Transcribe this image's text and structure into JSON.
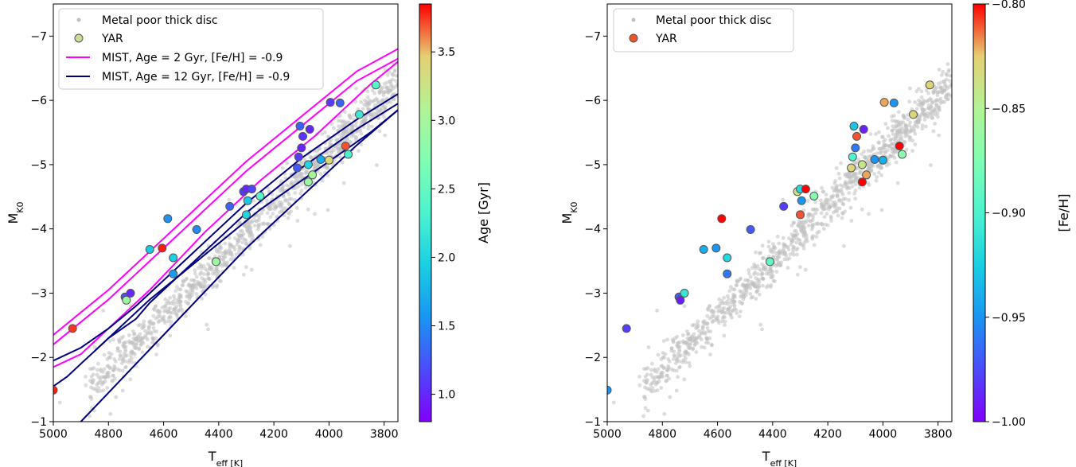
{
  "chart_data": [
    {
      "type": "scatter",
      "xlabel": "T_eff [K]",
      "ylabel": "M_K0",
      "xlim": [
        5000,
        3750
      ],
      "ylim": [
        -1,
        -7.5
      ],
      "xticks": [
        5000,
        4800,
        4600,
        4400,
        4200,
        4000,
        3800
      ],
      "yticks": [
        -1,
        -2,
        -3,
        -4,
        -5,
        -6,
        -7
      ],
      "colorbar": {
        "label": "Age [Gyr]",
        "range": [
          0.8,
          3.85
        ],
        "ticks": [
          1.0,
          1.5,
          2.0,
          2.5,
          3.0,
          3.5
        ],
        "colormap": "rainbow"
      },
      "legend": {
        "placement": "top-left",
        "entries": [
          "Metal poor thick disc",
          "YAR",
          "MIST, Age = 2 Gyr, [Fe/H] = -0.9",
          "MIST, Age = 12 Gyr, [Fe/H] = -0.9"
        ]
      },
      "background_cloud": {
        "name": "Metal poor thick disc",
        "color": "#c0c0c0",
        "trend": "dense band from (4850 K, -1.6) to (3750 K, -6.3)"
      },
      "yar_points": [
        {
          "teff": 5000,
          "mk": -1.49,
          "age": 3.8
        },
        {
          "teff": 4930,
          "mk": -2.45,
          "age": 3.75
        },
        {
          "teff": 4740,
          "mk": -2.94,
          "age": 1.2
        },
        {
          "teff": 4735,
          "mk": -2.89,
          "age": 2.9
        },
        {
          "teff": 4720,
          "mk": -3.0,
          "age": 1.0
        },
        {
          "teff": 4650,
          "mk": -3.68,
          "age": 1.9
        },
        {
          "teff": 4605,
          "mk": -3.7,
          "age": 3.8
        },
        {
          "teff": 4585,
          "mk": -4.16,
          "age": 1.55
        },
        {
          "teff": 4565,
          "mk": -3.55,
          "age": 1.95
        },
        {
          "teff": 4565,
          "mk": -3.3,
          "age": 1.6
        },
        {
          "teff": 4480,
          "mk": -3.99,
          "age": 1.5
        },
        {
          "teff": 4410,
          "mk": -3.49,
          "age": 2.9
        },
        {
          "teff": 4360,
          "mk": -4.35,
          "age": 1.3
        },
        {
          "teff": 4310,
          "mk": -4.58,
          "age": 1.1
        },
        {
          "teff": 4300,
          "mk": -4.62,
          "age": 1.0
        },
        {
          "teff": 4300,
          "mk": -4.22,
          "age": 2.0
        },
        {
          "teff": 4295,
          "mk": -4.44,
          "age": 1.9
        },
        {
          "teff": 4280,
          "mk": -4.62,
          "age": 1.15
        },
        {
          "teff": 4250,
          "mk": -4.51,
          "age": 2.4
        },
        {
          "teff": 4115,
          "mk": -4.95,
          "age": 1.25
        },
        {
          "teff": 4110,
          "mk": -5.12,
          "age": 1.1
        },
        {
          "teff": 4105,
          "mk": -5.6,
          "age": 1.3
        },
        {
          "teff": 4100,
          "mk": -5.26,
          "age": 1.0
        },
        {
          "teff": 4095,
          "mk": -5.44,
          "age": 1.05
        },
        {
          "teff": 4075,
          "mk": -5.0,
          "age": 2.0
        },
        {
          "teff": 4075,
          "mk": -4.73,
          "age": 2.9
        },
        {
          "teff": 4070,
          "mk": -5.55,
          "age": 1.0
        },
        {
          "teff": 4060,
          "mk": -4.84,
          "age": 3.0
        },
        {
          "teff": 4030,
          "mk": -5.08,
          "age": 1.7
        },
        {
          "teff": 4000,
          "mk": -5.07,
          "age": 3.4
        },
        {
          "teff": 3995,
          "mk": -5.97,
          "age": 1.1
        },
        {
          "teff": 3960,
          "mk": -5.96,
          "age": 1.3
        },
        {
          "teff": 3940,
          "mk": -5.29,
          "age": 3.7
        },
        {
          "teff": 3930,
          "mk": -5.16,
          "age": 2.3
        },
        {
          "teff": 3890,
          "mk": -5.78,
          "age": 2.2
        },
        {
          "teff": 3830,
          "mk": -6.24,
          "age": 2.4
        }
      ],
      "isochrones": [
        {
          "name": "MIST, Age = 2 Gyr, [Fe/H] = -0.9",
          "color": "#ff00ff",
          "tracks": [
            [
              [
                5000,
                -2.35
              ],
              [
                4900,
                -2.7
              ],
              [
                4800,
                -3.05
              ],
              [
                4700,
                -3.45
              ],
              [
                4600,
                -3.85
              ],
              [
                4500,
                -4.25
              ],
              [
                4400,
                -4.65
              ],
              [
                4300,
                -5.05
              ],
              [
                4200,
                -5.4
              ],
              [
                4100,
                -5.75
              ],
              [
                4000,
                -6.1
              ],
              [
                3900,
                -6.45
              ],
              [
                3750,
                -6.8
              ]
            ],
            [
              [
                5000,
                -2.2
              ],
              [
                4900,
                -2.55
              ],
              [
                4800,
                -2.9
              ],
              [
                4700,
                -3.3
              ],
              [
                4600,
                -3.7
              ],
              [
                4500,
                -4.1
              ],
              [
                4400,
                -4.5
              ],
              [
                4300,
                -4.9
              ],
              [
                4200,
                -5.25
              ],
              [
                4100,
                -5.6
              ],
              [
                4000,
                -5.95
              ],
              [
                3900,
                -6.3
              ],
              [
                3750,
                -6.65
              ]
            ],
            [
              [
                5000,
                -1.85
              ],
              [
                4950,
                -1.95
              ],
              [
                4900,
                -2.05
              ],
              [
                4850,
                -2.25
              ],
              [
                4750,
                -2.65
              ],
              [
                4650,
                -3.05
              ],
              [
                4550,
                -3.5
              ],
              [
                4450,
                -3.95
              ],
              [
                4350,
                -4.35
              ],
              [
                4250,
                -4.75
              ],
              [
                4150,
                -5.1
              ],
              [
                4050,
                -5.45
              ],
              [
                3950,
                -5.85
              ],
              [
                3850,
                -6.25
              ],
              [
                3750,
                -6.6
              ]
            ]
          ]
        },
        {
          "name": "MIST, Age = 12 Gyr, [Fe/H] = -0.9",
          "color": "#000080",
          "tracks": [
            [
              [
                5000,
                -1.95
              ],
              [
                4900,
                -2.15
              ],
              [
                4800,
                -2.45
              ],
              [
                4700,
                -2.8
              ],
              [
                4600,
                -3.2
              ],
              [
                4500,
                -3.6
              ],
              [
                4400,
                -4.0
              ],
              [
                4300,
                -4.4
              ],
              [
                4200,
                -4.75
              ],
              [
                4100,
                -5.1
              ],
              [
                4000,
                -5.4
              ],
              [
                3900,
                -5.7
              ],
              [
                3750,
                -6.1
              ]
            ],
            [
              [
                5000,
                -1.55
              ],
              [
                4950,
                -1.7
              ],
              [
                4900,
                -1.9
              ],
              [
                4850,
                -2.1
              ],
              [
                4800,
                -2.3
              ],
              [
                4700,
                -2.6
              ],
              [
                4650,
                -2.85
              ],
              [
                4600,
                -3.05
              ],
              [
                4500,
                -3.45
              ],
              [
                4400,
                -3.85
              ],
              [
                4300,
                -4.25
              ],
              [
                4200,
                -4.6
              ],
              [
                4100,
                -4.95
              ],
              [
                4000,
                -5.25
              ],
              [
                3900,
                -5.55
              ],
              [
                3750,
                -5.95
              ]
            ],
            [
              [
                4850,
                -2.1
              ],
              [
                4750,
                -2.5
              ],
              [
                4650,
                -2.9
              ],
              [
                4550,
                -3.25
              ],
              [
                4450,
                -3.6
              ],
              [
                4350,
                -3.95
              ],
              [
                4250,
                -4.3
              ],
              [
                4150,
                -4.6
              ],
              [
                4050,
                -4.9
              ],
              [
                3950,
                -5.2
              ],
              [
                3850,
                -5.5
              ],
              [
                3750,
                -5.85
              ]
            ],
            [
              [
                4900,
                -1.0
              ],
              [
                4800,
                -1.45
              ],
              [
                4700,
                -1.9
              ],
              [
                4600,
                -2.35
              ],
              [
                4500,
                -2.8
              ],
              [
                4400,
                -3.25
              ],
              [
                4300,
                -3.7
              ],
              [
                4200,
                -4.1
              ],
              [
                4100,
                -4.5
              ],
              [
                4000,
                -4.9
              ],
              [
                3900,
                -5.3
              ],
              [
                3750,
                -5.85
              ]
            ]
          ]
        }
      ]
    },
    {
      "type": "scatter",
      "xlabel": "T_eff [K]",
      "ylabel": "M_K0",
      "xlim": [
        5000,
        3750
      ],
      "ylim": [
        -1,
        -7.5
      ],
      "xticks": [
        5000,
        4800,
        4600,
        4400,
        4200,
        4000,
        3800
      ],
      "yticks": [
        -1,
        -2,
        -3,
        -4,
        -5,
        -6,
        -7
      ],
      "colorbar": {
        "label": "[Fe/H]",
        "range": [
          -1.0,
          -0.8
        ],
        "ticks": [
          -1.0,
          -0.95,
          -0.9,
          -0.85,
          -0.8
        ],
        "colormap": "rainbow"
      },
      "legend": {
        "placement": "top-left",
        "entries": [
          "Metal poor thick disc",
          "YAR"
        ]
      },
      "yar_points": [
        {
          "teff": 5000,
          "mk": -1.49,
          "feh": -0.95
        },
        {
          "teff": 4930,
          "mk": -2.45,
          "feh": -0.98
        },
        {
          "teff": 4740,
          "mk": -2.94,
          "feh": -0.97
        },
        {
          "teff": 4735,
          "mk": -2.89,
          "feh": -0.99
        },
        {
          "teff": 4720,
          "mk": -3.0,
          "feh": -0.91
        },
        {
          "teff": 4650,
          "mk": -3.68,
          "feh": -0.94
        },
        {
          "teff": 4605,
          "mk": -3.7,
          "feh": -0.95
        },
        {
          "teff": 4585,
          "mk": -4.16,
          "feh": -0.8
        },
        {
          "teff": 4565,
          "mk": -3.55,
          "feh": -0.92
        },
        {
          "teff": 4565,
          "mk": -3.3,
          "feh": -0.96
        },
        {
          "teff": 4480,
          "mk": -3.99,
          "feh": -0.97
        },
        {
          "teff": 4410,
          "mk": -3.49,
          "feh": -0.89
        },
        {
          "teff": 4360,
          "mk": -4.35,
          "feh": -0.98
        },
        {
          "teff": 4310,
          "mk": -4.58,
          "feh": -0.84
        },
        {
          "teff": 4300,
          "mk": -4.62,
          "feh": -0.92
        },
        {
          "teff": 4300,
          "mk": -4.22,
          "feh": -0.81
        },
        {
          "teff": 4295,
          "mk": -4.44,
          "feh": -0.95
        },
        {
          "teff": 4280,
          "mk": -4.62,
          "feh": -0.8
        },
        {
          "teff": 4250,
          "mk": -4.51,
          "feh": -0.87
        },
        {
          "teff": 4115,
          "mk": -4.95,
          "feh": -0.83
        },
        {
          "teff": 4110,
          "mk": -5.12,
          "feh": -0.9
        },
        {
          "teff": 4105,
          "mk": -5.6,
          "feh": -0.93
        },
        {
          "teff": 4100,
          "mk": -5.26,
          "feh": -0.96
        },
        {
          "teff": 4095,
          "mk": -5.44,
          "feh": -0.81
        },
        {
          "teff": 4075,
          "mk": -5.0,
          "feh": -0.84
        },
        {
          "teff": 4075,
          "mk": -4.73,
          "feh": -0.8
        },
        {
          "teff": 4070,
          "mk": -5.55,
          "feh": -0.99
        },
        {
          "teff": 4060,
          "mk": -4.84,
          "feh": -0.82
        },
        {
          "teff": 4030,
          "mk": -5.08,
          "feh": -0.95
        },
        {
          "teff": 4000,
          "mk": -5.07,
          "feh": -0.94
        },
        {
          "teff": 3995,
          "mk": -5.97,
          "feh": -0.82
        },
        {
          "teff": 3960,
          "mk": -5.96,
          "feh": -0.95
        },
        {
          "teff": 3940,
          "mk": -5.29,
          "feh": -0.8
        },
        {
          "teff": 3930,
          "mk": -5.16,
          "feh": -0.87
        },
        {
          "teff": 3890,
          "mk": -5.78,
          "feh": -0.83
        },
        {
          "teff": 3830,
          "mk": -6.24,
          "feh": -0.83
        }
      ]
    }
  ]
}
